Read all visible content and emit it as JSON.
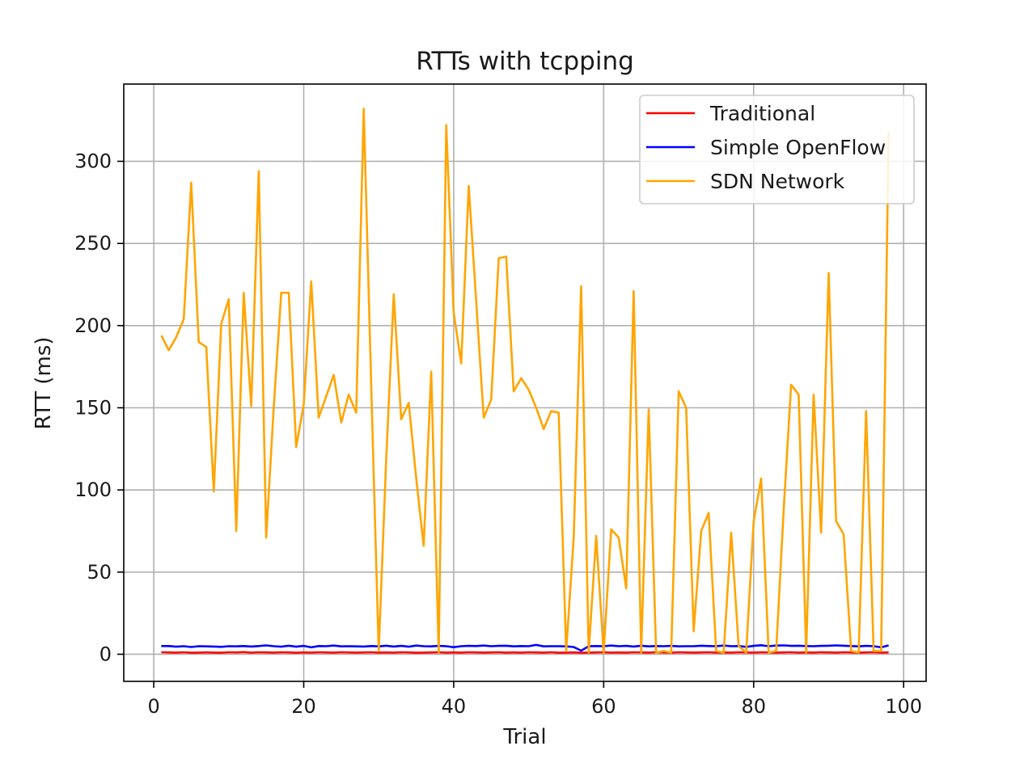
{
  "chart_data": {
    "type": "line",
    "title": "RTTs with tcpping",
    "xlabel": "Trial",
    "ylabel": "RTT (ms)",
    "xlim": [
      -4,
      103
    ],
    "ylim": [
      -16.5,
      347
    ],
    "xticks": [
      0,
      20,
      40,
      60,
      80,
      100
    ],
    "yticks": [
      0,
      50,
      100,
      150,
      200,
      250,
      300
    ],
    "grid": true,
    "legend": "top-right",
    "x": [
      1,
      2,
      3,
      4,
      5,
      6,
      7,
      8,
      9,
      10,
      11,
      12,
      13,
      14,
      15,
      16,
      17,
      18,
      19,
      20,
      21,
      22,
      23,
      24,
      25,
      26,
      27,
      28,
      29,
      30,
      31,
      32,
      33,
      34,
      35,
      36,
      37,
      38,
      39,
      40,
      41,
      42,
      43,
      44,
      45,
      46,
      47,
      48,
      49,
      50,
      51,
      52,
      53,
      54,
      55,
      56,
      57,
      58,
      59,
      60,
      61,
      62,
      63,
      64,
      65,
      66,
      67,
      68,
      69,
      70,
      71,
      72,
      73,
      74,
      75,
      76,
      77,
      78,
      79,
      80,
      81,
      82,
      83,
      84,
      85,
      86,
      87,
      88,
      89,
      90,
      91,
      92,
      93,
      94,
      95,
      96,
      97,
      98
    ],
    "series": [
      {
        "name": "Traditional",
        "color": "#ff0000",
        "values": [
          1.2,
          1.1,
          1.0,
          1.2,
          0.9,
          1.0,
          1.1,
          1.0,
          0.9,
          1.2,
          1.1,
          1.3,
          1.0,
          1.2,
          1.1,
          1.0,
          1.2,
          1.1,
          0.9,
          1.1,
          1.0,
          1.2,
          1.1,
          1.0,
          1.2,
          1.1,
          1.0,
          1.1,
          1.2,
          1.0,
          1.1,
          1.0,
          1.2,
          1.1,
          0.9,
          1.0,
          1.1,
          1.2,
          1.0,
          1.1,
          1.0,
          1.2,
          1.1,
          1.0,
          1.1,
          1.2,
          1.0,
          1.1,
          1.0,
          1.2,
          1.1,
          1.0,
          1.2,
          0.9,
          1.0,
          1.1,
          0.9,
          1.0,
          1.1,
          1.2,
          1.0,
          1.1,
          1.0,
          1.2,
          1.1,
          1.0,
          1.2,
          1.1,
          1.0,
          1.2,
          1.1,
          1.0,
          1.1,
          1.2,
          1.0,
          1.1,
          1.0,
          1.2,
          1.1,
          1.0,
          1.2,
          1.1,
          1.0,
          1.1,
          1.2,
          1.0,
          1.1,
          1.0,
          1.2,
          1.1,
          1.0,
          1.2,
          1.1,
          1.0,
          1.1,
          1.2,
          1.0,
          1.1
        ]
      },
      {
        "name": "Simple OpenFlow",
        "color": "#0000ff",
        "values": [
          5.0,
          5.0,
          4.6,
          4.9,
          4.4,
          4.9,
          4.8,
          4.7,
          4.5,
          4.9,
          4.8,
          5.0,
          4.7,
          5.0,
          5.4,
          4.9,
          4.6,
          5.2,
          4.6,
          5.1,
          4.2,
          5.0,
          4.9,
          5.3,
          4.8,
          4.9,
          4.8,
          4.7,
          5.0,
          4.8,
          5.2,
          4.7,
          5.1,
          4.6,
          5.3,
          4.9,
          4.8,
          5.1,
          4.9,
          4.3,
          4.9,
          5.1,
          5.0,
          5.3,
          4.9,
          5.1,
          5.2,
          4.8,
          5.0,
          4.9,
          5.7,
          4.8,
          4.9,
          4.9,
          4.8,
          4.4,
          2.2,
          4.9,
          5.0,
          4.9,
          5.3,
          4.9,
          5.1,
          4.7,
          5.2,
          4.8,
          5.0,
          4.9,
          5.1,
          4.8,
          4.9,
          4.9,
          5.2,
          5.0,
          4.9,
          5.3,
          4.9,
          5.0,
          4.5,
          5.1,
          5.5,
          4.9,
          5.3,
          5.4,
          5.1,
          5.2,
          5.0,
          4.9,
          5.1,
          5.2,
          5.4,
          5.2,
          5.0,
          4.8,
          5.1,
          4.9,
          4.2,
          5.4
        ]
      },
      {
        "name": "SDN Network",
        "color": "#ffa500",
        "values": [
          194,
          185,
          193,
          204,
          287,
          190,
          187,
          99,
          201,
          216,
          75,
          220,
          151,
          294,
          71,
          150,
          220,
          220,
          126,
          152,
          227,
          144,
          157,
          170,
          141,
          158,
          147,
          332,
          164,
          2,
          119,
          219,
          143,
          153,
          107,
          66,
          172,
          1,
          322,
          208,
          177,
          285,
          215,
          144,
          155,
          241,
          242,
          160,
          168,
          161,
          150,
          137,
          148,
          147,
          2,
          71,
          224,
          1,
          72,
          1,
          76,
          71,
          40,
          221,
          1,
          149,
          1,
          2,
          1,
          160,
          150,
          14,
          75,
          86,
          2,
          1,
          74,
          5,
          1,
          81,
          107,
          1,
          2,
          88,
          164,
          158,
          1,
          158,
          74,
          232,
          81,
          73,
          2,
          1,
          148,
          2,
          2,
          318
        ]
      }
    ]
  }
}
